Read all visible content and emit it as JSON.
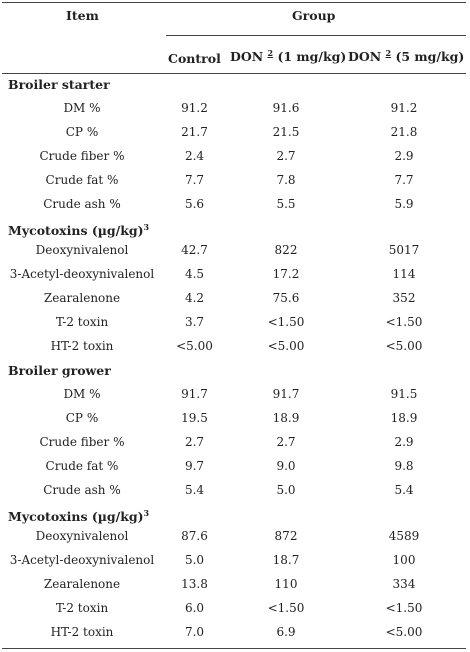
{
  "header": {
    "item": "Item",
    "group": "Group",
    "col_control": "Control",
    "col_don1_name": "DON",
    "col_don1_sup": "2",
    "col_don1_dose": "(1 mg/kg)",
    "col_don5_name": "DON",
    "col_don5_sup": "2",
    "col_don5_dose": "(5 mg/kg)"
  },
  "sections": [
    {
      "title": "Broiler starter",
      "rows": [
        {
          "item": "DM %",
          "control": "91.2",
          "don1": "91.6",
          "don5": "91.2"
        },
        {
          "item": "CP %",
          "control": "21.7",
          "don1": "21.5",
          "don5": "21.8"
        },
        {
          "item": "Crude fiber %",
          "control": "2.4",
          "don1": "2.7",
          "don5": "2.9"
        },
        {
          "item": "Crude fat %",
          "control": "7.7",
          "don1": "7.8",
          "don5": "7.7"
        },
        {
          "item": "Crude ash %",
          "control": "5.6",
          "don1": "5.5",
          "don5": "5.9"
        }
      ]
    },
    {
      "title": "Mycotoxins (µg/kg)",
      "title_sup": "3",
      "rows": [
        {
          "item": "Deoxynivalenol",
          "control": "42.7",
          "don1": "822",
          "don5": "5017"
        },
        {
          "item": "3-Acetyl-deoxynivalenol",
          "control": "4.5",
          "don1": "17.2",
          "don5": "114"
        },
        {
          "item": "Zearalenone",
          "control": "4.2",
          "don1": "75.6",
          "don5": "352"
        },
        {
          "item": "T-2 toxin",
          "control": "3.7",
          "don1": "<1.50",
          "don5": "<1.50"
        },
        {
          "item": "HT-2 toxin",
          "control": "<5.00",
          "don1": "<5.00",
          "don5": "<5.00"
        }
      ]
    },
    {
      "title": "Broiler grower",
      "rows": [
        {
          "item": "DM %",
          "control": "91.7",
          "don1": "91.7",
          "don5": "91.5"
        },
        {
          "item": "CP %",
          "control": "19.5",
          "don1": "18.9",
          "don5": "18.9"
        },
        {
          "item": "Crude fiber %",
          "control": "2.7",
          "don1": "2.7",
          "don5": "2.9"
        },
        {
          "item": "Crude fat %",
          "control": "9.7",
          "don1": "9.0",
          "don5": "9.8"
        },
        {
          "item": "Crude ash %",
          "control": "5.4",
          "don1": "5.0",
          "don5": "5.4"
        }
      ]
    },
    {
      "title": "Mycotoxins (µg/kg)",
      "title_sup": "3",
      "rows": [
        {
          "item": "Deoxynivalenol",
          "control": "87.6",
          "don1": "872",
          "don5": "4589"
        },
        {
          "item": "3-Acetyl-deoxynivalenol",
          "control": "5.0",
          "don1": "18.7",
          "don5": "100"
        },
        {
          "item": "Zearalenone",
          "control": "13.8",
          "don1": "110",
          "don5": "334"
        },
        {
          "item": "T-2 toxin",
          "control": "6.0",
          "don1": "<1.50",
          "don5": "<1.50"
        },
        {
          "item": "HT-2 toxin",
          "control": "7.0",
          "don1": "6.9",
          "don5": "<5.00"
        }
      ]
    }
  ]
}
